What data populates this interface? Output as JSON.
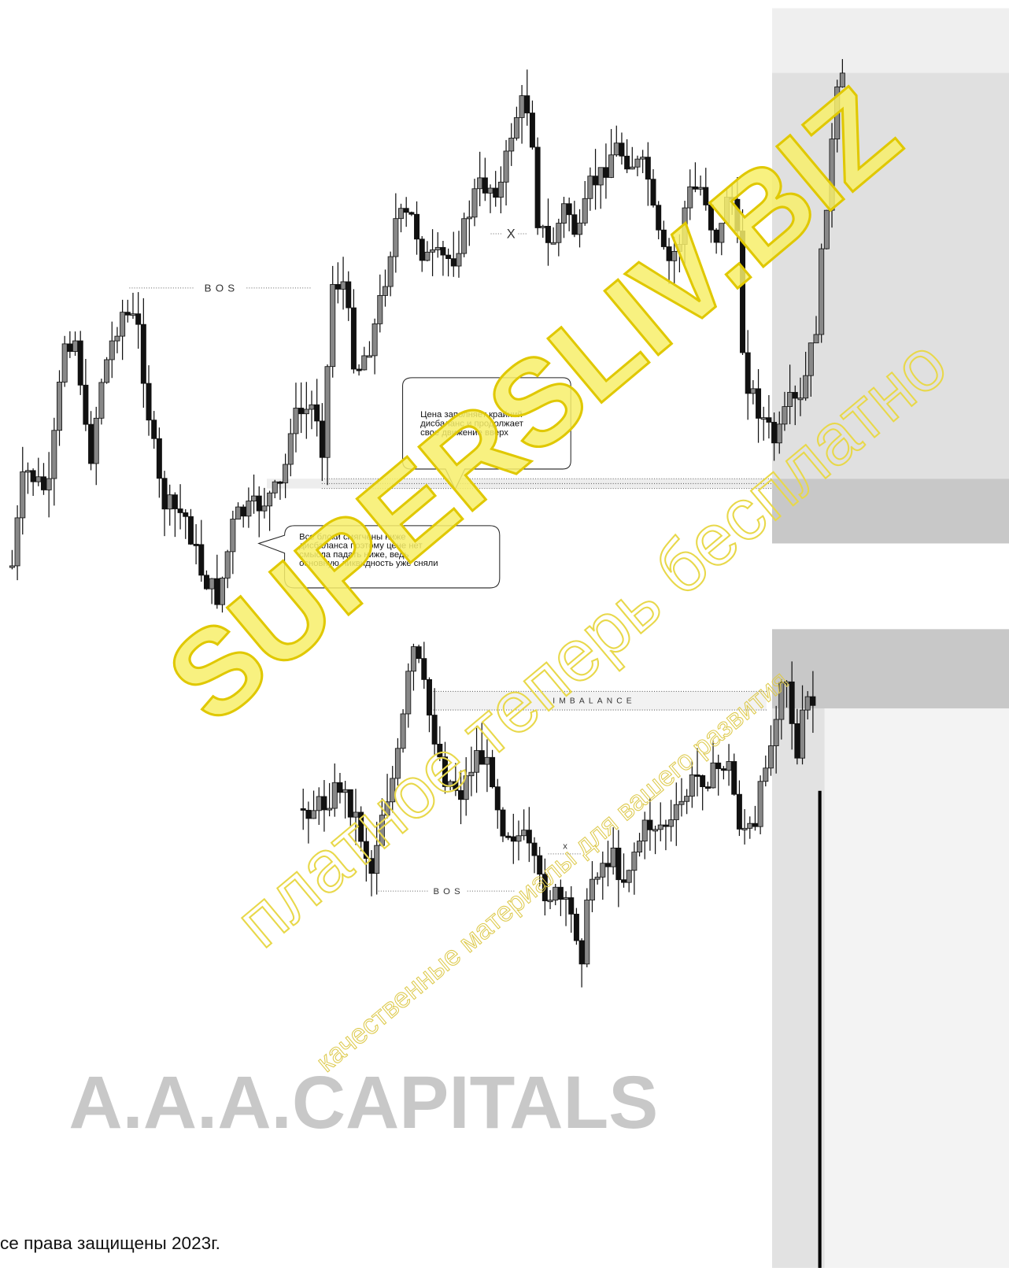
{
  "top_chart": {
    "bos_label": "BOS",
    "x_label": "X",
    "callout_up": [
      "Цена заполняет крайний",
      "дисбаланс и продолжает",
      "свое движение вверх"
    ],
    "callout_blocks": [
      "Все блоки смягчены ниже",
      "дисбаланса поэтому цене нет",
      "смысла падать ниже, ведь",
      "основную ликвидность уже сняли"
    ]
  },
  "bottom_chart": {
    "imbalance_label": "IMBALANCE",
    "x_label": "x",
    "bos_label": "BOS"
  },
  "watermarks": {
    "site": "SUPERSLIV.BIZ",
    "slogan": "платное теперь бесплатно",
    "subtitle": "качественные материалы для вашего развития"
  },
  "brand": "A.A.A.CAPITALS",
  "footer": "се права защищены 2023г."
}
